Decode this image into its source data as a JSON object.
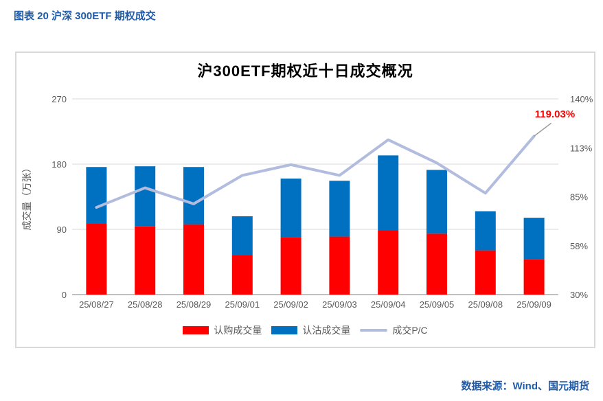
{
  "page": {
    "caption": "图表 20 沪深 300ETF 期权成交",
    "source": "数据来源：Wind、国元期货"
  },
  "colors": {
    "caption_blue": "#1F5BA8",
    "call_red": "#FF0000",
    "put_blue": "#0070C0",
    "pc_line": "#B1BCDE",
    "gridline": "#D9D9D9",
    "axis_line": "#ABABAB",
    "tick_text": "#595959",
    "annotation_red": "#FF0000",
    "leader_gray": "#999999",
    "box_border": "#D9D9D9"
  },
  "chart_data": {
    "type": "bar",
    "subtype": "stacked-bar-with-line",
    "title": "沪300ETF期权近十日成交概况",
    "categories": [
      "25/08/27",
      "25/08/28",
      "25/08/29",
      "25/09/01",
      "25/09/02",
      "25/09/03",
      "25/09/04",
      "25/09/05",
      "25/09/08",
      "25/09/09"
    ],
    "series": [
      {
        "name": "认购成交量",
        "type": "bar",
        "stack": "volume",
        "axis": "left",
        "color": "#FF0000",
        "values": [
          98,
          94,
          97,
          54,
          79,
          80,
          89,
          84,
          61,
          49
        ]
      },
      {
        "name": "认沽成交量",
        "type": "bar",
        "stack": "volume",
        "axis": "left",
        "color": "#0070C0",
        "values": [
          78,
          83,
          79,
          54,
          81,
          77,
          103,
          88,
          54,
          57
        ]
      },
      {
        "name": "成交P/C",
        "type": "line",
        "axis": "right",
        "color": "#B1BCDE",
        "values": [
          79,
          90,
          81,
          97,
          103,
          97,
          117,
          104,
          87,
          119.03
        ]
      }
    ],
    "left_axis": {
      "title": "成交量（万张）",
      "min": 0,
      "max": 270,
      "ticks": [
        0,
        90,
        180,
        270
      ]
    },
    "right_axis": {
      "min": 30,
      "max": 140,
      "ticks": [
        "30%",
        "58%",
        "85%",
        "113%",
        "140%"
      ]
    },
    "annotation": {
      "text": "119.03%",
      "target_series": "成交P/C",
      "target_category": "25/09/09"
    },
    "grid": "horizontal-only",
    "legend_position": "bottom"
  }
}
